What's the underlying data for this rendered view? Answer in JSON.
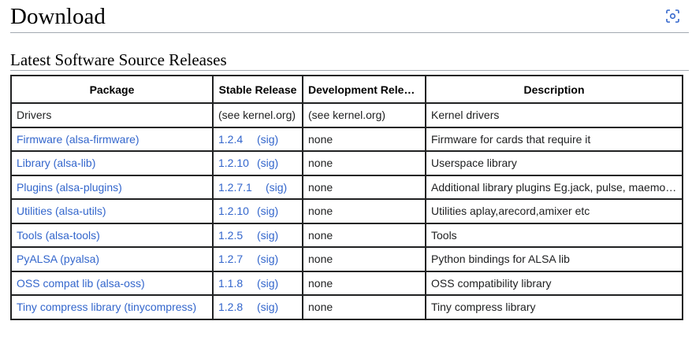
{
  "heading": "Download",
  "section_heading": "Latest Software Source Releases",
  "icons": {
    "heading_action": "screenshot-focus-icon"
  },
  "colors": {
    "link": "#3366cc",
    "text": "#202122",
    "border": "#202122",
    "rule": "#a2a9b1"
  },
  "table": {
    "headers": [
      "Package",
      "Stable Release",
      "Development Release",
      "Description"
    ],
    "rows": [
      {
        "package": "Drivers",
        "stable": "(see kernel.org)",
        "sig": "",
        "dev": "(see kernel.org)",
        "description": "Kernel drivers"
      },
      {
        "package": "Firmware (alsa-firmware)",
        "stable": "1.2.4",
        "sig": "(sig)",
        "dev": "none",
        "description": "Firmware for cards that require it"
      },
      {
        "package": "Library (alsa-lib)",
        "stable": "1.2.10",
        "sig": "(sig)",
        "dev": "none",
        "description": "Userspace library"
      },
      {
        "package": "Plugins (alsa-plugins)",
        "stable": "1.2.7.1",
        "sig": "(sig)",
        "dev": "none",
        "description": "Additional library plugins Eg.jack, pulse, maemo ..."
      },
      {
        "package": "Utilities (alsa-utils)",
        "stable": "1.2.10",
        "sig": "(sig)",
        "dev": "none",
        "description": "Utilities aplay,arecord,amixer etc"
      },
      {
        "package": "Tools (alsa-tools)",
        "stable": "1.2.5",
        "sig": "(sig)",
        "dev": "none",
        "description": "Tools"
      },
      {
        "package": "PyALSA (pyalsa)",
        "stable": "1.2.7",
        "sig": "(sig)",
        "dev": "none",
        "description": "Python bindings for ALSA lib"
      },
      {
        "package": "OSS compat lib (alsa-oss)",
        "stable": "1.1.8",
        "sig": "(sig)",
        "dev": "none",
        "description": "OSS compatibility library"
      },
      {
        "package": "Tiny compress library (tinycompress)",
        "stable": "1.2.8",
        "sig": "(sig)",
        "dev": "none",
        "description": "Tiny compress library"
      }
    ]
  }
}
